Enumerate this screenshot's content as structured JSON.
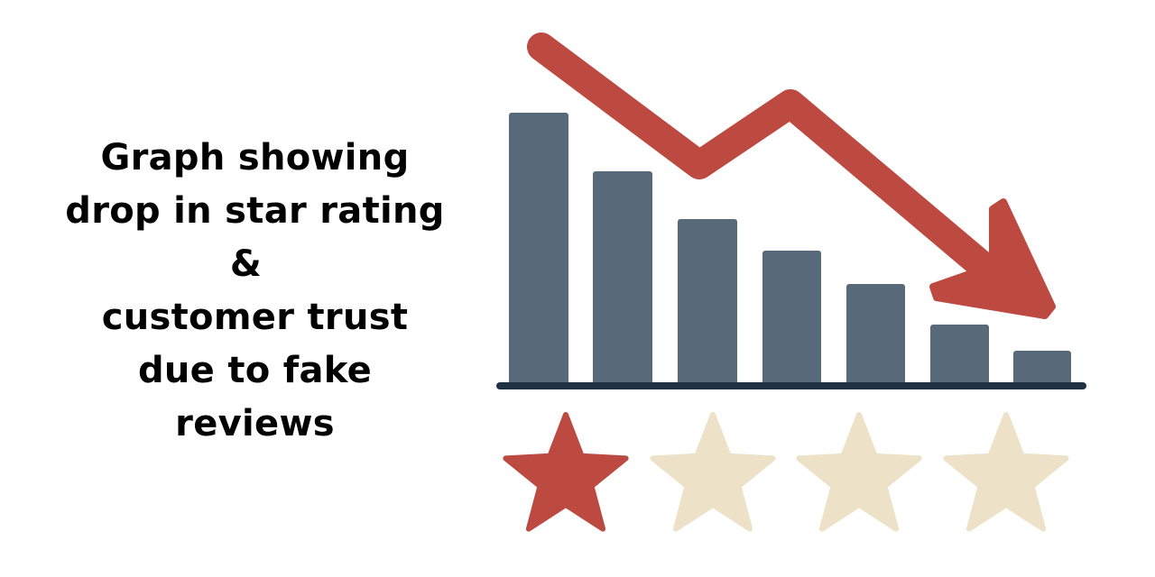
{
  "caption": {
    "lines": [
      "Graph showing",
      "drop in star rating",
      "&",
      "customer trust",
      "due to fake",
      "reviews"
    ]
  },
  "illustration": {
    "bar_count": 7,
    "bar_trend": "decreasing",
    "arrow_direction": "down-right",
    "stars_total": 4,
    "stars_filled": 1,
    "colors": {
      "bars": "#58697a",
      "baseline": "#1f3142",
      "arrow": "#bd4a40",
      "star_filled": "#bd4a40",
      "star_empty": "#ede1c8"
    }
  }
}
